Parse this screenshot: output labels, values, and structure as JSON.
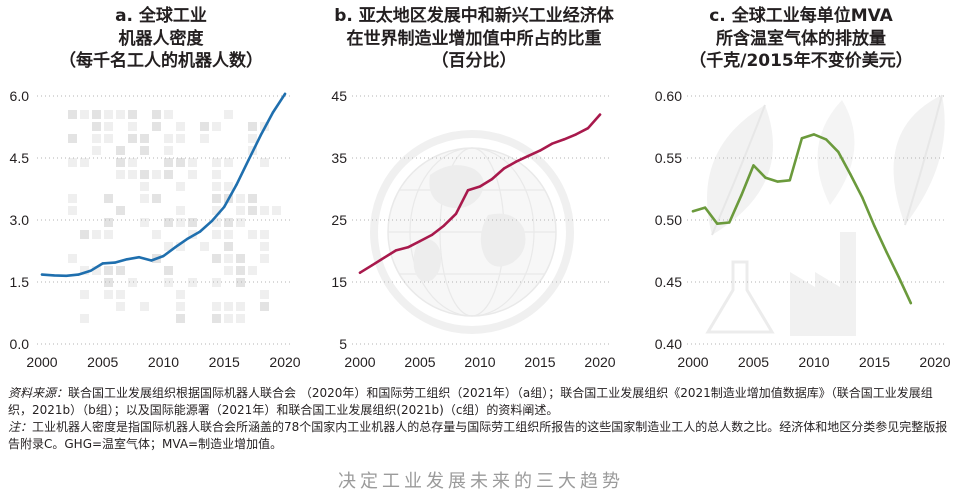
{
  "chart_data": [
    {
      "type": "line",
      "title_lines": [
        "a. 全球工业",
        "机器人密度",
        "（每千名工人的机器人数）"
      ],
      "x": [
        2000,
        2001,
        2002,
        2003,
        2004,
        2005,
        2006,
        2007,
        2008,
        2009,
        2010,
        2011,
        2012,
        2013,
        2014,
        2015,
        2016,
        2017,
        2018,
        2019,
        2020
      ],
      "series": [
        {
          "values": [
            1.68,
            1.66,
            1.65,
            1.68,
            1.77,
            1.95,
            1.97,
            2.05,
            2.1,
            2.02,
            2.13,
            2.35,
            2.55,
            2.72,
            2.98,
            3.32,
            3.85,
            4.45,
            5.05,
            5.6,
            6.05
          ]
        }
      ],
      "xlim": [
        2000,
        2020
      ],
      "ylim": [
        0,
        6
      ],
      "xticks": [
        "2000",
        "2005",
        "2010",
        "2015",
        "2020"
      ],
      "yticks": [
        "0.0",
        "1.5",
        "3.0",
        "4.5",
        "6.0"
      ],
      "grid": true,
      "color": "#1f6fae",
      "background_icon": "circuit-board-icon"
    },
    {
      "type": "line",
      "title_lines": [
        "b. 亚太地区发展中和新兴工业经济体",
        "在世界制造业增加值中所占的比重",
        "（百分比）"
      ],
      "x": [
        2000,
        2001,
        2002,
        2003,
        2004,
        2005,
        2006,
        2007,
        2008,
        2009,
        2010,
        2011,
        2012,
        2013,
        2014,
        2015,
        2016,
        2017,
        2018,
        2019,
        2020
      ],
      "series": [
        {
          "values": [
            16.5,
            17.7,
            18.9,
            20.1,
            20.6,
            21.6,
            22.6,
            24.1,
            26.0,
            29.8,
            30.4,
            31.6,
            33.3,
            34.4,
            35.3,
            36.2,
            37.3,
            38.0,
            38.8,
            39.8,
            42.0
          ]
        }
      ],
      "xlim": [
        2000,
        2020
      ],
      "ylim": [
        5,
        45
      ],
      "xticks": [
        "2000",
        "2005",
        "2010",
        "2015",
        "2020"
      ],
      "yticks": [
        "5",
        "15",
        "25",
        "35",
        "45"
      ],
      "grid": true,
      "color": "#a8194c",
      "background_icon": "globe-icon"
    },
    {
      "type": "line",
      "title_lines": [
        "c. 全球工业每单位MVA",
        "所含温室气体的排放量",
        "（千克/2015年不变价美元）"
      ],
      "x": [
        2000,
        2001,
        2002,
        2003,
        2004,
        2005,
        2006,
        2007,
        2008,
        2009,
        2010,
        2011,
        2012,
        2013,
        2014,
        2015,
        2016,
        2017,
        2018
      ],
      "series": [
        {
          "values": [
            0.507,
            0.51,
            0.497,
            0.498,
            0.52,
            0.544,
            0.534,
            0.531,
            0.532,
            0.566,
            0.569,
            0.565,
            0.555,
            0.537,
            0.518,
            0.495,
            0.474,
            0.454,
            0.433
          ]
        }
      ],
      "xlim": [
        2000,
        2020
      ],
      "ylim": [
        0.4,
        0.6
      ],
      "xticks": [
        "2000",
        "2005",
        "2010",
        "2015",
        "2020"
      ],
      "yticks": [
        "0.40",
        "0.45",
        "0.50",
        "0.55",
        "0.60"
      ],
      "grid": true,
      "color": "#6b9a3c",
      "background_icon": "leaf-factory-icon"
    }
  ],
  "notes": {
    "source_label": "资料来源：",
    "source_text": "联合国工业发展组织根据国际机器人联合会 （2020年）和国际劳工组织（2021年）（a组）；联合国工业发展组织《2021制造业增加值数据库》（联合国工业发展组织，2021b）（b组）；以及国际能源署（2021年）和联合国工业发展组织(2021b)（c组）的资料阐述。",
    "note_label": "注：",
    "note_text": "工业机器人密度是指国际机器人联合会所涵盖的78个国家内工业机器人的总存量与国际劳工组织所报告的这些国家制造业工人的总人数之比。经济体和地区分类参见完整版报告附录C。GHG=温室气体；MVA=制造业增加值。"
  },
  "caption": "决定工业发展未来的三大趋势"
}
